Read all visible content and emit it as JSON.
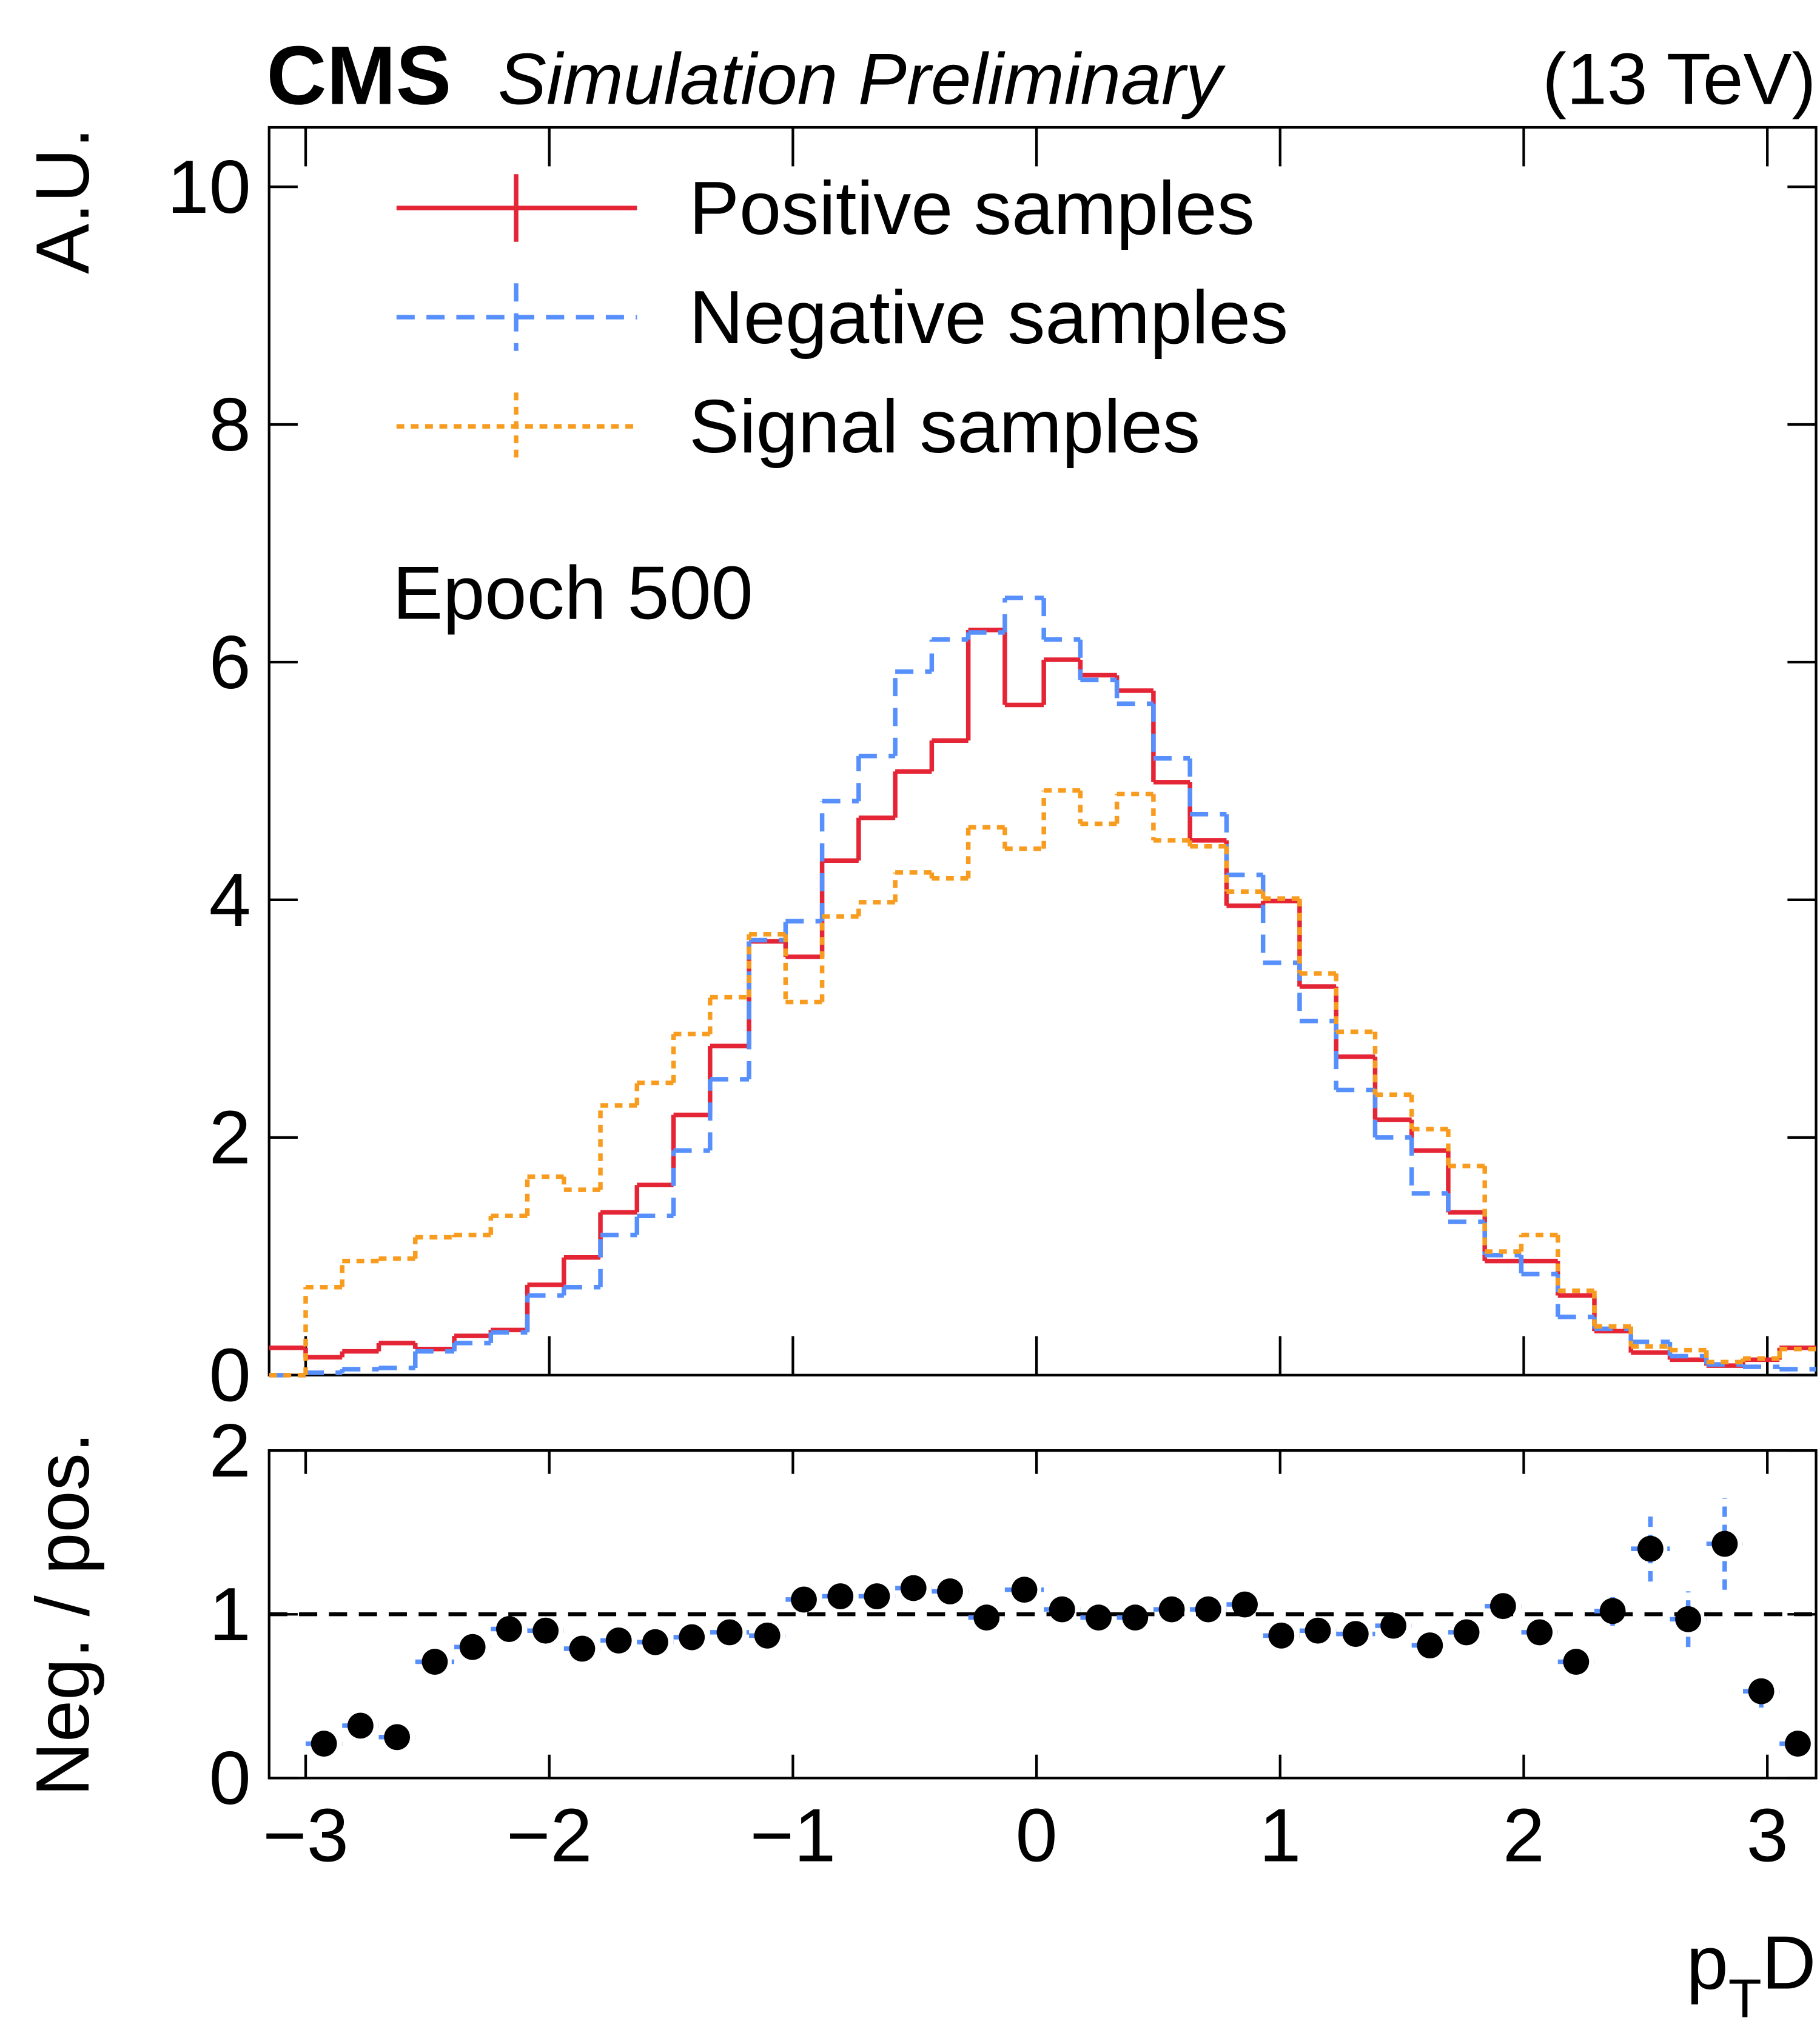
{
  "header": {
    "experiment": "CMS",
    "status": "Simulation Preliminary",
    "energy": "(13 TeV)"
  },
  "chart_data": [
    {
      "type": "histogram",
      "ylabel": "A.U.",
      "annotation": "Epoch 500",
      "legend": "top-left",
      "bins": [
        -3.15,
        -3.0,
        -2.85,
        -2.7,
        -2.55,
        -2.39,
        -2.24,
        -2.09,
        -1.94,
        -1.79,
        -1.64,
        -1.49,
        -1.34,
        -1.18,
        -1.03,
        -0.88,
        -0.73,
        -0.58,
        -0.43,
        -0.28,
        -0.13,
        0.03,
        0.18,
        0.33,
        0.48,
        0.63,
        0.78,
        0.93,
        1.08,
        1.23,
        1.39,
        1.54,
        1.69,
        1.84,
        1.99,
        2.14,
        2.29,
        2.44,
        2.6,
        2.75,
        2.9,
        3.05,
        3.2
      ],
      "xlim": [
        -3.15,
        3.2
      ],
      "xticks": [
        {
          "value": -3,
          "label": "−3"
        },
        {
          "value": -2,
          "label": "−2"
        },
        {
          "value": -1,
          "label": "−1"
        },
        0,
        1,
        2,
        3
      ],
      "ylim": [
        0,
        10.5
      ],
      "yticks": [
        0,
        2,
        4,
        6,
        8,
        10
      ],
      "series": [
        {
          "name": "Positive samples",
          "color": "#e42536",
          "dash": "solid",
          "values": [
            0.23,
            0.15,
            0.2,
            0.27,
            0.22,
            0.33,
            0.38,
            0.76,
            0.99,
            1.37,
            1.6,
            2.19,
            2.77,
            3.65,
            3.52,
            4.33,
            4.69,
            5.08,
            5.34,
            6.27,
            5.64,
            6.02,
            5.89,
            5.76,
            4.99,
            4.5,
            3.95,
            3.99,
            3.27,
            2.68,
            2.15,
            1.89,
            1.37,
            0.96,
            0.96,
            0.67,
            0.37,
            0.19,
            0.13,
            0.08,
            0.13,
            0.23
          ]
        },
        {
          "name": "Negative samples",
          "color": "#5790fc",
          "dash": "dashed",
          "values": [
            0,
            0.02,
            0.05,
            0.06,
            0.2,
            0.27,
            0.36,
            0.67,
            0.74,
            1.18,
            1.34,
            1.89,
            2.49,
            3.66,
            3.82,
            4.83,
            5.21,
            5.92,
            6.19,
            6.25,
            6.54,
            6.19,
            5.85,
            5.65,
            5.19,
            4.72,
            4.21,
            3.47,
            2.98,
            2.4,
            2.0,
            1.53,
            1.29,
            1.01,
            0.85,
            0.49,
            0.39,
            0.28,
            0.16,
            0.09,
            0.07,
            0.05
          ]
        },
        {
          "name": "Signal samples",
          "color": "#f89c20",
          "dash": "dotted",
          "values": [
            0,
            0.74,
            0.96,
            0.98,
            1.16,
            1.18,
            1.34,
            1.67,
            1.56,
            2.27,
            2.46,
            2.87,
            3.18,
            3.71,
            3.14,
            3.86,
            3.98,
            4.23,
            4.18,
            4.61,
            4.43,
            4.92,
            4.64,
            4.89,
            4.5,
            4.45,
            4.07,
            4.01,
            3.38,
            2.89,
            2.36,
            2.07,
            1.76,
            1.04,
            1.18,
            0.71,
            0.41,
            0.24,
            0.21,
            0.11,
            0.14,
            0.22
          ]
        }
      ]
    },
    {
      "type": "ratio",
      "ylabel": "Neg. / pos.",
      "xlabel": [
        "p",
        "T",
        "D"
      ],
      "reference": 1,
      "marker_color": "#000000",
      "error_color": "#5790fc",
      "ylim": [
        0,
        2
      ],
      "yticks": [
        0,
        1,
        2
      ],
      "values": [
        null,
        0.21,
        0.32,
        0.25,
        0.71,
        0.8,
        0.91,
        0.9,
        0.79,
        0.84,
        0.83,
        0.86,
        0.89,
        0.87,
        1.09,
        1.11,
        1.11,
        1.16,
        1.14,
        0.98,
        1.15,
        1.03,
        0.98,
        0.98,
        1.03,
        1.03,
        1.06,
        0.87,
        0.9,
        0.88,
        0.93,
        0.81,
        0.89,
        1.05,
        0.89,
        0.71,
        1.02,
        1.4,
        0.97,
        1.43,
        0.53,
        0.21
      ],
      "errors": [
        null,
        0.03,
        0.04,
        0.03,
        0.06,
        0.05,
        0.05,
        0.04,
        0.03,
        0.03,
        0.03,
        0.03,
        0.03,
        0.03,
        0.03,
        0.03,
        0.03,
        0.03,
        0.03,
        0.03,
        0.03,
        0.03,
        0.03,
        0.03,
        0.03,
        0.03,
        0.03,
        0.03,
        0.03,
        0.03,
        0.03,
        0.03,
        0.03,
        0.05,
        0.05,
        0.05,
        0.09,
        0.2,
        0.17,
        0.28,
        0.1,
        0.05
      ]
    }
  ]
}
